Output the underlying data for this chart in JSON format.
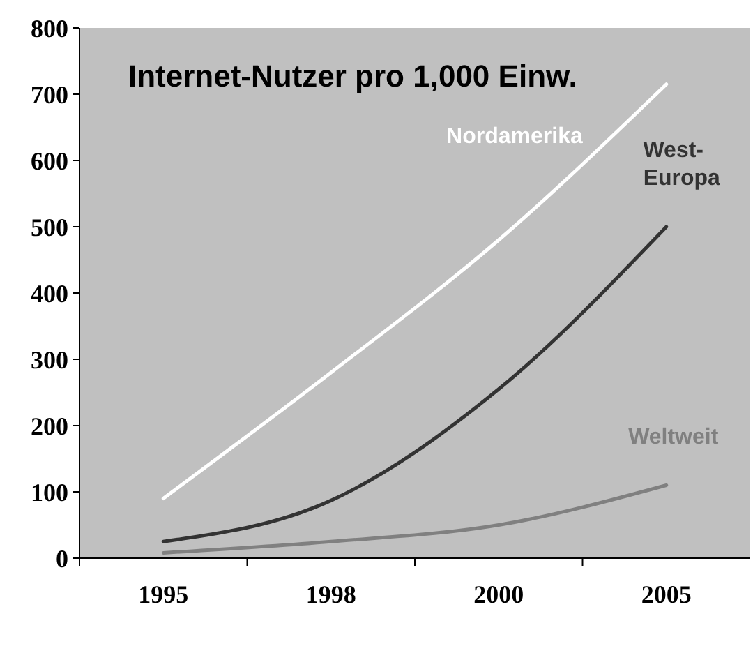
{
  "chart_data": {
    "type": "line",
    "title": "Internet-Nutzer pro 1,000 Einw.",
    "categories": [
      "1995",
      "1998",
      "2000",
      "2005"
    ],
    "series": [
      {
        "name": "Nordamerika",
        "color": "#ffffff",
        "values": [
          90,
          280,
          480,
          715
        ]
      },
      {
        "name": "West-Europa",
        "color": "#333333",
        "values": [
          25,
          87,
          255,
          500
        ]
      },
      {
        "name": "Weltweit",
        "color": "#808080",
        "values": [
          8,
          25,
          50,
          110
        ]
      }
    ],
    "ylim": [
      0,
      800
    ],
    "yticks": [
      0,
      100,
      200,
      300,
      400,
      500,
      600,
      700,
      800
    ],
    "grid": false,
    "marker": "none",
    "line_style": "solid"
  }
}
